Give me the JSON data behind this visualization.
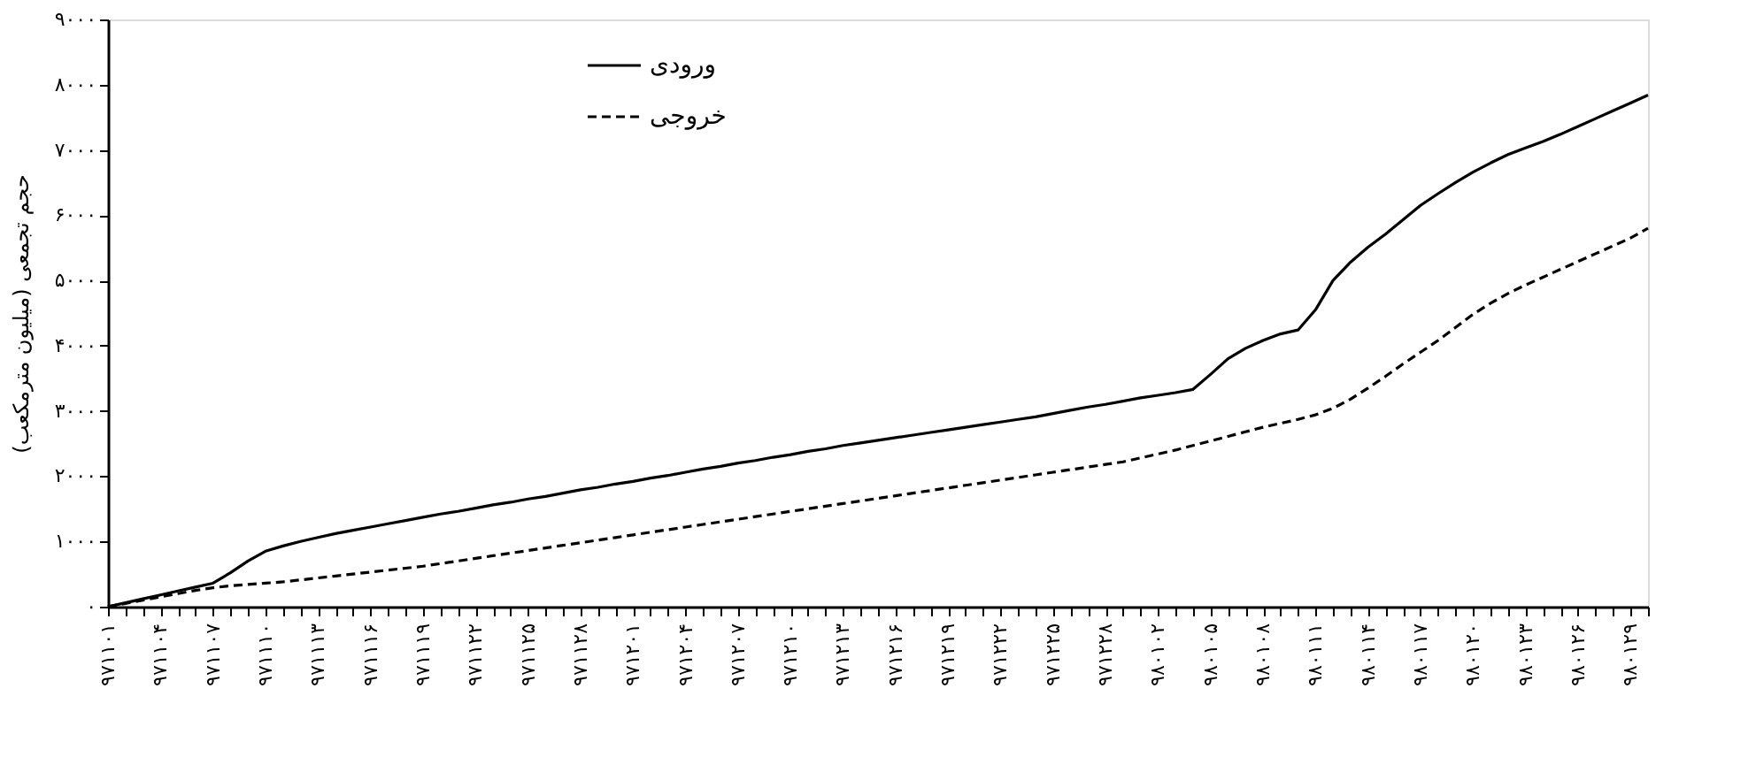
{
  "chart_data": {
    "type": "line",
    "ylabel": "حجم تجمعی (میلیون مترمکعب)",
    "categories": [
      "۹۷۱۱۰۱",
      null,
      null,
      "۹۷۱۱۰۴",
      null,
      null,
      "۹۷۱۱۰۷",
      null,
      null,
      "۹۷۱۱۱۰",
      null,
      null,
      "۹۷۱۱۱۳",
      null,
      null,
      "۹۷۱۱۱۶",
      null,
      null,
      "۹۷۱۱۱۹",
      null,
      null,
      "۹۷۱۱۲۲",
      null,
      null,
      "۹۷۱۱۲۵",
      null,
      null,
      "۹۷۱۱۲۸",
      null,
      null,
      "۹۷۱۲۰۱",
      null,
      null,
      "۹۷۱۲۰۴",
      null,
      null,
      "۹۷۱۲۰۷",
      null,
      null,
      "۹۷۱۲۱۰",
      null,
      null,
      "۹۷۱۲۱۳",
      null,
      null,
      "۹۷۱۲۱۶",
      null,
      null,
      "۹۷۱۲۱۹",
      null,
      null,
      "۹۷۱۲۲۲",
      null,
      null,
      "۹۷۱۲۲۵",
      null,
      null,
      "۹۷۱۲۲۸",
      null,
      null,
      "۹۸۰۱۰۲",
      null,
      null,
      "۹۸۰۱۰۵",
      null,
      null,
      "۹۸۰۱۰۸",
      null,
      null,
      "۹۸۰۱۱۱",
      null,
      null,
      "۹۸۰۱۱۴",
      null,
      null,
      "۹۸۰۱۱۷",
      null,
      null,
      "۹۸۰۱۲۰",
      null,
      null,
      "۹۸۰۱۲۳",
      null,
      null,
      "۹۸۰۱۲۶",
      null,
      null,
      "۹۸۰۱۲۹",
      null
    ],
    "series": [
      {
        "name": "ورودی",
        "color": "#000000",
        "line_style": "solid",
        "values": [
          0,
          60,
          120,
          180,
          240,
          300,
          360,
          520,
          700,
          850,
          930,
          1000,
          1060,
          1120,
          1170,
          1220,
          1270,
          1320,
          1370,
          1420,
          1460,
          1510,
          1560,
          1600,
          1650,
          1690,
          1740,
          1790,
          1830,
          1880,
          1920,
          1970,
          2010,
          2060,
          2110,
          2150,
          2200,
          2240,
          2290,
          2330,
          2380,
          2420,
          2470,
          2510,
          2550,
          2590,
          2630,
          2670,
          2710,
          2750,
          2790,
          2830,
          2870,
          2910,
          2960,
          3010,
          3060,
          3100,
          3150,
          3200,
          3240,
          3280,
          3330,
          3560,
          3800,
          3960,
          4080,
          4180,
          4240,
          4550,
          5000,
          5280,
          5510,
          5710,
          5930,
          6150,
          6330,
          6500,
          6660,
          6800,
          6930,
          7030,
          7130,
          7240,
          7360,
          7480,
          7600,
          7720,
          7840
        ]
      },
      {
        "name": "خروجی",
        "color": "#000000",
        "line_style": "dashed",
        "values": [
          0,
          50,
          100,
          150,
          200,
          250,
          290,
          320,
          340,
          360,
          380,
          410,
          440,
          470,
          500,
          530,
          560,
          590,
          620,
          660,
          700,
          740,
          780,
          820,
          860,
          900,
          940,
          980,
          1020,
          1060,
          1100,
          1140,
          1180,
          1220,
          1260,
          1300,
          1340,
          1380,
          1420,
          1460,
          1500,
          1540,
          1580,
          1620,
          1660,
          1700,
          1740,
          1780,
          1820,
          1860,
          1900,
          1940,
          1980,
          2020,
          2060,
          2100,
          2140,
          2180,
          2220,
          2280,
          2340,
          2400,
          2470,
          2540,
          2610,
          2680,
          2750,
          2810,
          2870,
          2940,
          3040,
          3180,
          3350,
          3530,
          3720,
          3900,
          4080,
          4280,
          4480,
          4650,
          4800,
          4930,
          5050,
          5170,
          5290,
          5410,
          5530,
          5650,
          5800
        ]
      }
    ],
    "ylim": [
      0,
      9000
    ],
    "yticks": [
      {
        "value": 0,
        "label": "۰"
      },
      {
        "value": 1000,
        "label": "۱۰۰۰"
      },
      {
        "value": 2000,
        "label": "۲۰۰۰"
      },
      {
        "value": 3000,
        "label": "۳۰۰۰"
      },
      {
        "value": 4000,
        "label": "۴۰۰۰"
      },
      {
        "value": 5000,
        "label": "۵۰۰۰"
      },
      {
        "value": 6000,
        "label": "۶۰۰۰"
      },
      {
        "value": 7000,
        "label": "۷۰۰۰"
      },
      {
        "value": 8000,
        "label": "۸۰۰۰"
      },
      {
        "value": 9000,
        "label": "۹۰۰۰"
      }
    ],
    "grid": false,
    "legend": "top",
    "marker": "none"
  }
}
